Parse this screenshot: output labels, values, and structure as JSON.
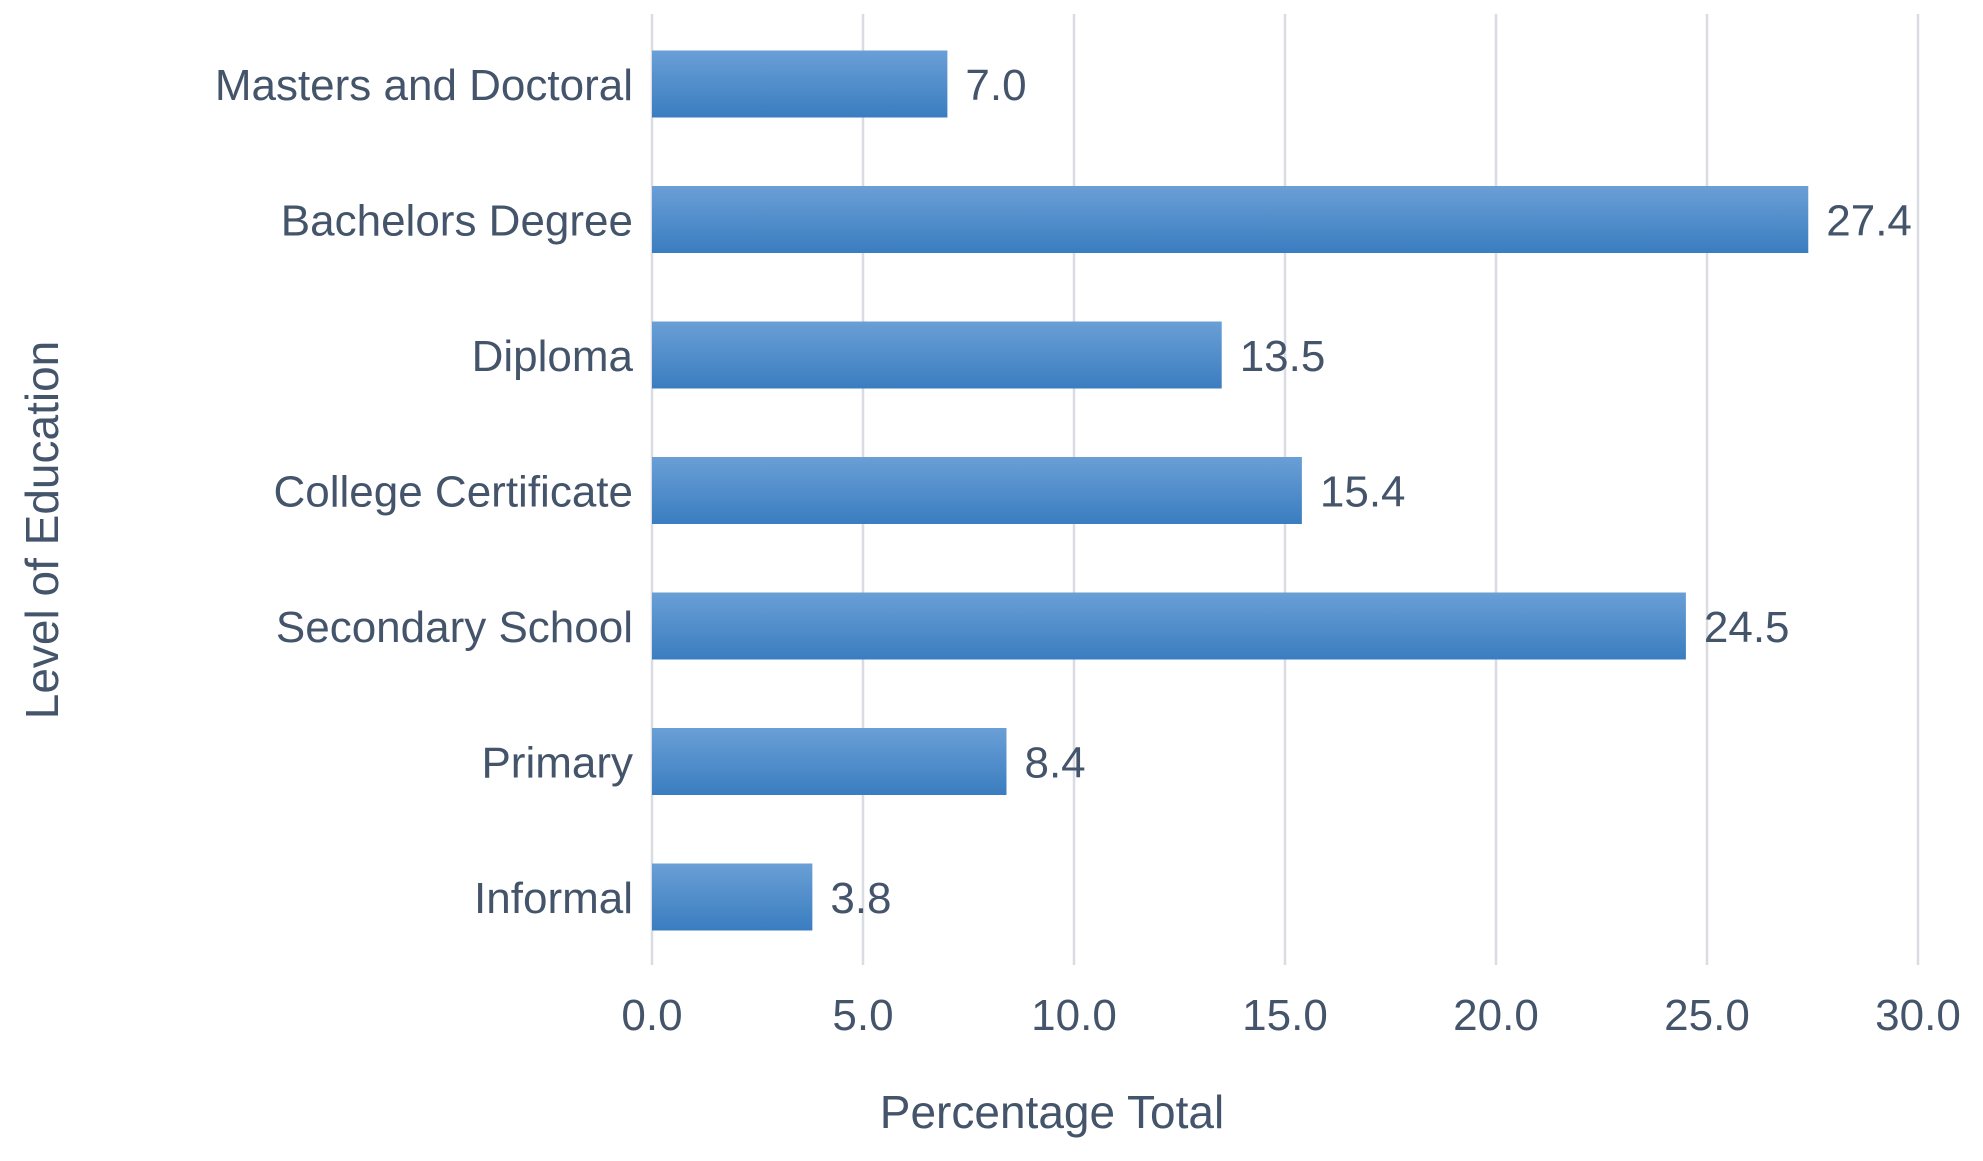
{
  "chart_data": {
    "type": "bar",
    "orientation": "horizontal",
    "categories": [
      "Masters and Doctoral",
      "Bachelors Degree",
      "Diploma",
      "College Certificate",
      "Secondary School",
      "Primary",
      "Informal"
    ],
    "values": [
      7.0,
      27.4,
      13.5,
      15.4,
      24.5,
      8.4,
      3.8
    ],
    "value_labels": [
      "7.0",
      "27.4",
      "13.5",
      "15.4",
      "24.5",
      "8.4",
      "3.8"
    ],
    "xlabel": "Percentage Total",
    "ylabel": "Level of Education",
    "xlim": [
      0,
      30
    ],
    "xticks": [
      0,
      5,
      10,
      15,
      20,
      25,
      30
    ],
    "xtick_labels": [
      "0.0",
      "5.0",
      "10.0",
      "15.0",
      "20.0",
      "25.0",
      "30.0"
    ],
    "grid": "vertical",
    "legend": "none",
    "colors": {
      "bar_top": "#6a9fd6",
      "bar_bottom": "#3a7dc0",
      "text": "#44546a",
      "grid": "#d9dde3"
    }
  }
}
